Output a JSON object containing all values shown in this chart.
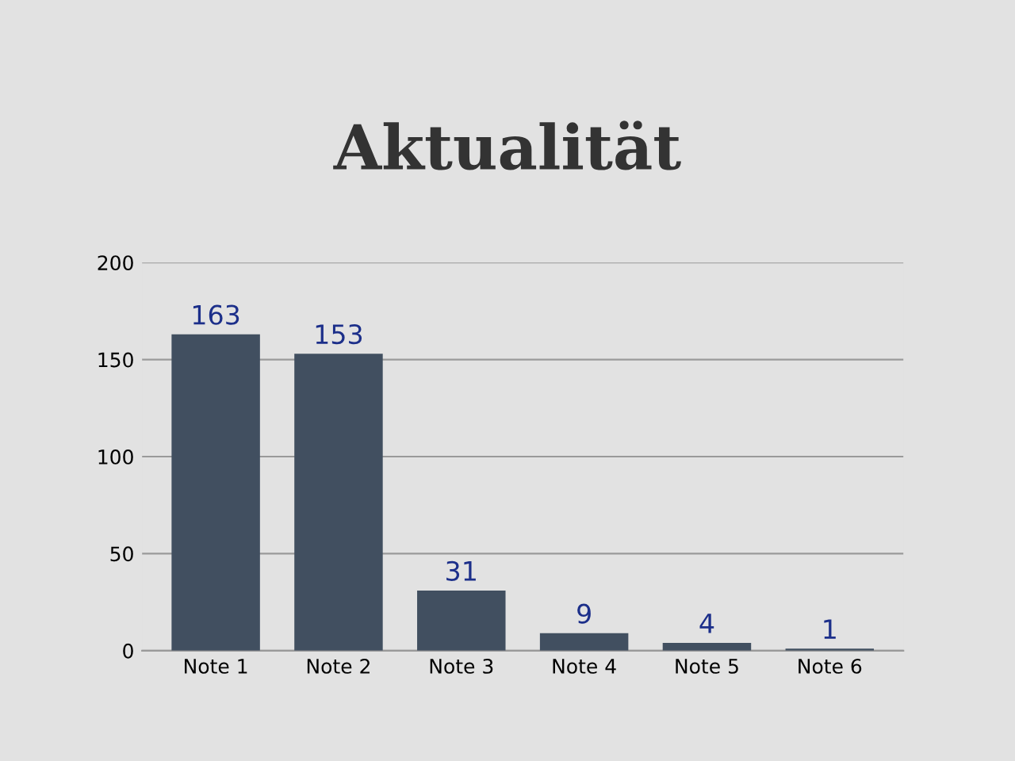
{
  "chart_data": {
    "type": "bar",
    "title": "Aktualität",
    "categories": [
      "Note 1",
      "Note 2",
      "Note 3",
      "Note 4",
      "Note 5",
      "Note 6"
    ],
    "values": [
      163,
      153,
      31,
      9,
      4,
      1
    ],
    "color": "#414f60",
    "ylim": [
      0,
      200
    ],
    "yticks": [
      0,
      50,
      100,
      150,
      200
    ],
    "grid": "y",
    "data_labels": true
  }
}
